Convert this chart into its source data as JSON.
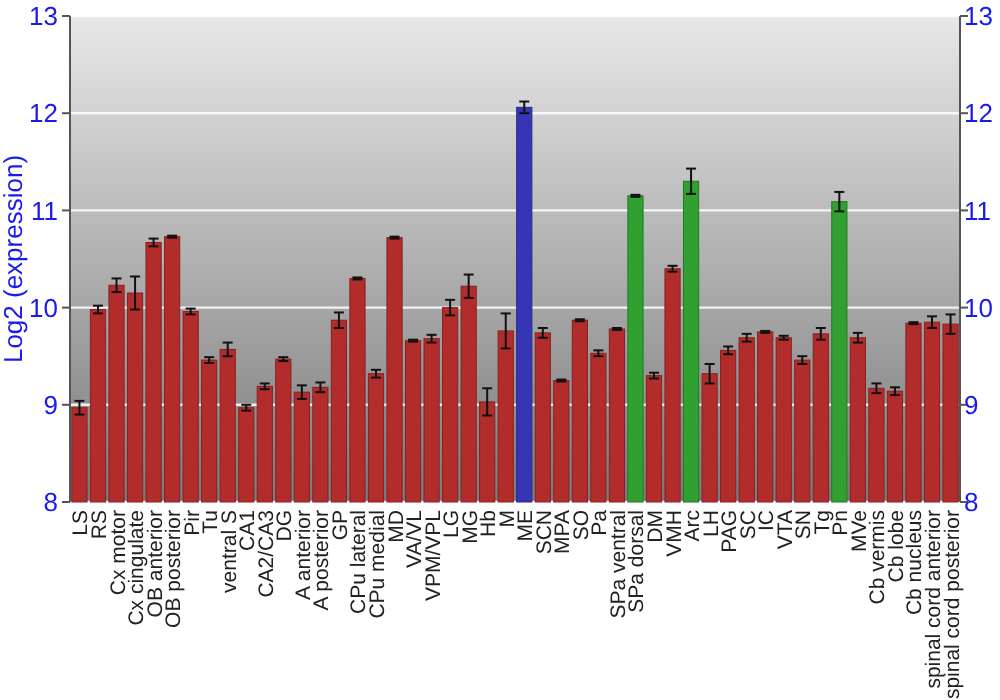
{
  "chart_data": {
    "type": "bar",
    "ylabel": "Log2 (expression)",
    "categories": [
      "LS",
      "RS",
      "Cx motor",
      "Cx cingulate",
      "OB anterior",
      "OB posterior",
      "Pir",
      "Tu",
      "ventral S",
      "CA1",
      "CA2/CA3",
      "DG",
      "A anterior",
      "A posterior",
      "GP",
      "CPu lateral",
      "CPu medial",
      "MD",
      "VA/VL",
      "VPM/VPL",
      "LG",
      "MG",
      "Hb",
      "M",
      "ME",
      "SCN",
      "MPA",
      "SO",
      "Pa",
      "SPa ventral",
      "SPa dorsal",
      "DM",
      "VMH",
      "Arc",
      "LH",
      "PAG",
      "SC",
      "IC",
      "VTA",
      "SN",
      "Tg",
      "Pn",
      "MVe",
      "Cb vermis",
      "Cb lobe",
      "Cb nucleus",
      "spinal cord anterior",
      "spinal cord posterior"
    ],
    "values": [
      8.97,
      9.98,
      10.23,
      10.15,
      10.67,
      10.73,
      9.96,
      9.46,
      9.57,
      8.97,
      9.19,
      9.47,
      9.13,
      9.18,
      9.87,
      10.3,
      9.32,
      10.72,
      9.66,
      9.68,
      10.0,
      10.22,
      9.03,
      9.76,
      12.06,
      9.74,
      9.25,
      9.87,
      9.53,
      9.78,
      11.15,
      9.3,
      10.4,
      11.3,
      9.32,
      9.56,
      9.69,
      9.75,
      9.69,
      9.46,
      9.73,
      11.09,
      9.69,
      9.17,
      9.14,
      9.84,
      9.85,
      9.83
    ],
    "errors": [
      0.07,
      0.04,
      0.07,
      0.17,
      0.04,
      0.01,
      0.03,
      0.03,
      0.07,
      0.03,
      0.03,
      0.02,
      0.07,
      0.05,
      0.08,
      0.01,
      0.04,
      0.01,
      0.01,
      0.04,
      0.08,
      0.12,
      0.14,
      0.18,
      0.06,
      0.05,
      0.01,
      0.01,
      0.03,
      0.01,
      0.01,
      0.03,
      0.03,
      0.13,
      0.1,
      0.04,
      0.04,
      0.01,
      0.02,
      0.04,
      0.06,
      0.1,
      0.05,
      0.05,
      0.04,
      0.01,
      0.06,
      0.1
    ],
    "colors": [
      "#b32c2c",
      "#b32c2c",
      "#b32c2c",
      "#b32c2c",
      "#b32c2c",
      "#b32c2c",
      "#b32c2c",
      "#b32c2c",
      "#b32c2c",
      "#b32c2c",
      "#b32c2c",
      "#b32c2c",
      "#b32c2c",
      "#b32c2c",
      "#b32c2c",
      "#b32c2c",
      "#b32c2c",
      "#b32c2c",
      "#b32c2c",
      "#b32c2c",
      "#b32c2c",
      "#b32c2c",
      "#b32c2c",
      "#b32c2c",
      "#3535b5",
      "#b32c2c",
      "#b32c2c",
      "#b32c2c",
      "#b32c2c",
      "#b32c2c",
      "#30a030",
      "#b32c2c",
      "#b32c2c",
      "#30a030",
      "#b32c2c",
      "#b32c2c",
      "#b32c2c",
      "#b32c2c",
      "#b32c2c",
      "#b32c2c",
      "#b32c2c",
      "#30a030",
      "#b32c2c",
      "#b32c2c",
      "#b32c2c",
      "#b32c2c",
      "#b32c2c",
      "#b32c2c"
    ],
    "ylim": [
      8,
      13
    ],
    "yticks": [
      8,
      9,
      10,
      11,
      12,
      13
    ],
    "y2lim": [
      8,
      13
    ],
    "y2ticks": [
      8,
      9,
      10,
      11,
      12,
      13
    ],
    "grid": "y"
  }
}
